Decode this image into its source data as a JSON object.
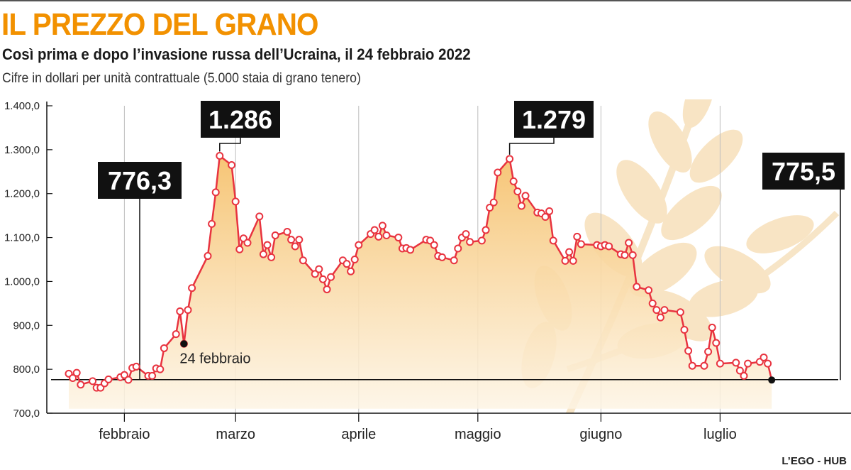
{
  "header": {
    "title": "IL PREZZO DEL GRANO",
    "subtitle": "Così prima e dopo l’invasione russa dell’Ucraina, il 24 febbraio 2022",
    "units": "Cifre in dollari per unità contrattuale (5.000 staia di grano tenero)"
  },
  "footer": {
    "source": "L’EGO - HUB"
  },
  "colors": {
    "title": "#f29100",
    "line": "#e8333f",
    "area_top": "#f6c26e",
    "area_bottom": "#fdf4e4"
  },
  "chart_data": {
    "type": "area",
    "title": "IL PREZZO DEL GRANO",
    "ylabel": "",
    "xlabel": "",
    "ylim": [
      700,
      1400
    ],
    "yticks": [
      "700,0",
      "800,0",
      "900,0",
      "1.000,0",
      "1.100,0",
      "1.200,0",
      "1.300,0",
      "1.400,0"
    ],
    "ytick_values": [
      700,
      800,
      900,
      1000,
      1100,
      1200,
      1300,
      1400
    ],
    "x_range": [
      "2022-01-18",
      "2022-07-29"
    ],
    "months": [
      {
        "label": "febbraio",
        "date": "2022-02-01"
      },
      {
        "label": "marzo",
        "date": "2022-03-01"
      },
      {
        "label": "aprile",
        "date": "2022-04-01"
      },
      {
        "label": "maggio",
        "date": "2022-05-01"
      },
      {
        "label": "giugno",
        "date": "2022-06-01"
      },
      {
        "label": "luglio",
        "date": "2022-07-01"
      }
    ],
    "grid": "vertical lines at month starts",
    "reference_line": 776.3,
    "series": [
      {
        "points": [
          [
            "2022-01-18",
            790
          ],
          [
            "2022-01-19",
            780
          ],
          [
            "2022-01-20",
            792
          ],
          [
            "2022-01-21",
            765
          ],
          [
            "2022-01-24",
            773
          ],
          [
            "2022-01-25",
            758
          ],
          [
            "2022-01-26",
            758
          ],
          [
            "2022-01-27",
            768
          ],
          [
            "2022-01-28",
            777
          ],
          [
            "2022-01-31",
            782
          ],
          [
            "2022-02-01",
            787
          ],
          [
            "2022-02-02",
            776
          ],
          [
            "2022-02-03",
            803
          ],
          [
            "2022-02-04",
            806
          ],
          [
            "2022-02-07",
            785
          ],
          [
            "2022-02-08",
            785
          ],
          [
            "2022-02-09",
            802
          ],
          [
            "2022-02-10",
            800
          ],
          [
            "2022-02-11",
            848
          ],
          [
            "2022-02-14",
            880
          ],
          [
            "2022-02-15",
            932
          ],
          [
            "2022-02-16",
            858
          ],
          [
            "2022-02-17",
            935
          ],
          [
            "2022-02-18",
            985
          ],
          [
            "2022-02-22",
            1058
          ],
          [
            "2022-02-23",
            1131
          ],
          [
            "2022-02-24",
            1203
          ],
          [
            "2022-02-25",
            1286
          ],
          [
            "2022-02-28",
            1265
          ],
          [
            "2022-03-01",
            1182
          ],
          [
            "2022-03-02",
            1073
          ],
          [
            "2022-03-03",
            1098
          ],
          [
            "2022-03-04",
            1088
          ],
          [
            "2022-03-07",
            1148
          ],
          [
            "2022-03-08",
            1062
          ],
          [
            "2022-03-09",
            1083
          ],
          [
            "2022-03-10",
            1055
          ],
          [
            "2022-03-11",
            1105
          ],
          [
            "2022-03-14",
            1113
          ],
          [
            "2022-03-15",
            1095
          ],
          [
            "2022-03-16",
            1080
          ],
          [
            "2022-03-17",
            1095
          ],
          [
            "2022-03-18",
            1048
          ],
          [
            "2022-03-21",
            1017
          ],
          [
            "2022-03-22",
            1028
          ],
          [
            "2022-03-23",
            1005
          ],
          [
            "2022-03-24",
            982
          ],
          [
            "2022-03-25",
            1010
          ],
          [
            "2022-03-28",
            1048
          ],
          [
            "2022-03-29",
            1040
          ],
          [
            "2022-03-30",
            1023
          ],
          [
            "2022-03-31",
            1050
          ],
          [
            "2022-04-01",
            1083
          ],
          [
            "2022-04-04",
            1108
          ],
          [
            "2022-04-05",
            1117
          ],
          [
            "2022-04-06",
            1102
          ],
          [
            "2022-04-07",
            1127
          ],
          [
            "2022-04-08",
            1105
          ],
          [
            "2022-04-11",
            1100
          ],
          [
            "2022-04-12",
            1075
          ],
          [
            "2022-04-13",
            1076
          ],
          [
            "2022-04-14",
            1072
          ],
          [
            "2022-04-18",
            1095
          ],
          [
            "2022-04-19",
            1093
          ],
          [
            "2022-04-20",
            1083
          ],
          [
            "2022-04-21",
            1058
          ],
          [
            "2022-04-22",
            1055
          ],
          [
            "2022-04-25",
            1048
          ],
          [
            "2022-04-26",
            1075
          ],
          [
            "2022-04-27",
            1100
          ],
          [
            "2022-04-28",
            1108
          ],
          [
            "2022-04-29",
            1090
          ],
          [
            "2022-05-02",
            1093
          ],
          [
            "2022-05-03",
            1117
          ],
          [
            "2022-05-04",
            1168
          ],
          [
            "2022-05-05",
            1180
          ],
          [
            "2022-05-06",
            1248
          ],
          [
            "2022-05-09",
            1279
          ],
          [
            "2022-05-10",
            1228
          ],
          [
            "2022-05-11",
            1205
          ],
          [
            "2022-05-12",
            1172
          ],
          [
            "2022-05-13",
            1195
          ],
          [
            "2022-05-16",
            1157
          ],
          [
            "2022-05-17",
            1155
          ],
          [
            "2022-05-18",
            1147
          ],
          [
            "2022-05-19",
            1160
          ],
          [
            "2022-05-20",
            1093
          ],
          [
            "2022-05-23",
            1047
          ],
          [
            "2022-05-24",
            1067
          ],
          [
            "2022-05-25",
            1047
          ],
          [
            "2022-05-26",
            1102
          ],
          [
            "2022-05-27",
            1085
          ],
          [
            "2022-05-31",
            1083
          ],
          [
            "2022-06-01",
            1080
          ],
          [
            "2022-06-02",
            1083
          ],
          [
            "2022-06-03",
            1080
          ],
          [
            "2022-06-06",
            1062
          ],
          [
            "2022-06-07",
            1060
          ],
          [
            "2022-06-08",
            1088
          ],
          [
            "2022-06-09",
            1060
          ],
          [
            "2022-06-10",
            988
          ],
          [
            "2022-06-13",
            980
          ],
          [
            "2022-06-14",
            950
          ],
          [
            "2022-06-15",
            935
          ],
          [
            "2022-06-16",
            918
          ],
          [
            "2022-06-17",
            935
          ],
          [
            "2022-06-21",
            930
          ],
          [
            "2022-06-22",
            890
          ],
          [
            "2022-06-23",
            842
          ],
          [
            "2022-06-24",
            808
          ],
          [
            "2022-06-27",
            808
          ],
          [
            "2022-06-28",
            840
          ],
          [
            "2022-06-29",
            895
          ],
          [
            "2022-06-30",
            860
          ],
          [
            "2022-07-01",
            813
          ],
          [
            "2022-07-05",
            815
          ],
          [
            "2022-07-06",
            797
          ],
          [
            "2022-07-07",
            785
          ],
          [
            "2022-07-08",
            813
          ],
          [
            "2022-07-11",
            817
          ],
          [
            "2022-07-12",
            827
          ],
          [
            "2022-07-13",
            813
          ],
          [
            "2022-07-14",
            775.5
          ]
        ]
      }
    ],
    "callouts": [
      {
        "label": "776,3",
        "date": "2022-02-02",
        "value": 776.3
      },
      {
        "label": "1.286",
        "date": "2022-02-25",
        "value": 1286
      },
      {
        "label": "1.279",
        "date": "2022-05-09",
        "value": 1279
      },
      {
        "label": "775,5",
        "date": "2022-07-14",
        "value": 775.5
      }
    ],
    "annotations": [
      {
        "label": "24 febbraio",
        "date": "2022-02-16",
        "value": 858
      }
    ]
  }
}
